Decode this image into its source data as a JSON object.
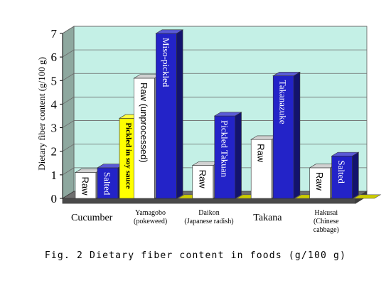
{
  "chart_data": {
    "type": "bar",
    "ylabel": "Dietary fiber content (g/100 g)",
    "ylim": [
      0,
      7
    ],
    "yticks": [
      "0",
      "1",
      "2",
      "3",
      "4",
      "5",
      "6",
      "7"
    ],
    "grid": true,
    "caption": "Fig. 2 Dietary fiber content in foods (g/100 g)",
    "colors": {
      "raw": "#ffffff",
      "processed": "#2323c8",
      "soy": "#ffff00",
      "wall": "#c4f0e6",
      "floor": "#6e6e6e"
    },
    "groups": [
      {
        "category": "Cucumber",
        "category_lines": [
          "Cucumber"
        ],
        "bars": [
          {
            "label": "Raw",
            "value": 1.1,
            "kind": "raw"
          },
          {
            "label": "Salted",
            "value": 1.3,
            "kind": "processed"
          },
          {
            "label": "Pickled in soy sauce",
            "value": 3.4,
            "kind": "soy"
          }
        ]
      },
      {
        "category": "Yamagobo (pokeweed)",
        "category_lines": [
          "Yamagobo",
          "(pokeweed)"
        ],
        "bars": [
          {
            "label": "Raw (unprocessed)",
            "value": 5.1,
            "kind": "raw"
          },
          {
            "label": "Miso-pickled",
            "value": 7.0,
            "kind": "processed"
          },
          {
            "label": "",
            "value": 0,
            "kind": "soy"
          }
        ]
      },
      {
        "category": "Daikon (Japanese radish)",
        "category_lines": [
          "Daikon",
          "(Japanese radish)"
        ],
        "bars": [
          {
            "label": "Raw",
            "value": 1.4,
            "kind": "raw"
          },
          {
            "label": "Pickled Takuan",
            "value": 3.5,
            "kind": "processed"
          },
          {
            "label": "",
            "value": 0,
            "kind": "soy"
          }
        ]
      },
      {
        "category": "Takana",
        "category_lines": [
          "Takana"
        ],
        "bars": [
          {
            "label": "Raw",
            "value": 2.5,
            "kind": "raw"
          },
          {
            "label": "Takanazuke",
            "value": 5.2,
            "kind": "processed"
          },
          {
            "label": "",
            "value": 0,
            "kind": "soy"
          }
        ]
      },
      {
        "category": "Hakusai (Chinese cabbage)",
        "category_lines": [
          "Hakusai",
          "(Chinese",
          "cabbage)"
        ],
        "bars": [
          {
            "label": "Raw",
            "value": 1.3,
            "kind": "raw"
          },
          {
            "label": "Salted",
            "value": 1.8,
            "kind": "processed"
          },
          {
            "label": "",
            "value": 0,
            "kind": "soy"
          }
        ]
      }
    ]
  }
}
